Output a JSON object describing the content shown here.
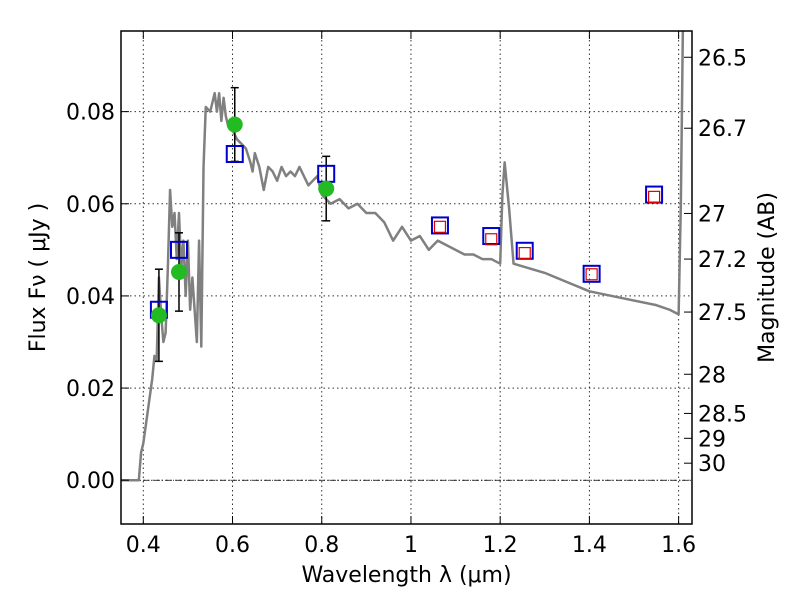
{
  "chart_data": {
    "type": "scatter",
    "title": "",
    "xlabel": "Wavelength  λ (μm)",
    "ylabel": "Flux  Fν  ( μJy )",
    "y2label": "Magnitude (AB)",
    "xlim": [
      0.35,
      1.63
    ],
    "ylim": [
      -0.0095,
      0.0975
    ],
    "grid": true,
    "x_ticks": [
      0.4,
      0.6,
      0.8,
      1.0,
      1.2,
      1.4,
      1.6
    ],
    "x_tick_labels": [
      "0.4",
      "0.6",
      "0.8",
      "1",
      "1.2",
      "1.4",
      "1.6"
    ],
    "y_ticks": [
      0.0,
      0.02,
      0.04,
      0.06,
      0.08
    ],
    "y_tick_labels": [
      "0.00",
      "0.02",
      "0.04",
      "0.06",
      "0.08"
    ],
    "y2_ticks": [
      {
        "flux": 0.0918,
        "label": "26.5"
      },
      {
        "flux": 0.0764,
        "label": "26.7"
      },
      {
        "flux": 0.0579,
        "label": "27"
      },
      {
        "flux": 0.048,
        "label": "27.2"
      },
      {
        "flux": 0.0365,
        "label": "27.5"
      },
      {
        "flux": 0.023,
        "label": "28"
      },
      {
        "flux": 0.0145,
        "label": "28.5"
      },
      {
        "flux": 0.0091,
        "label": "29"
      },
      {
        "flux": 0.0037,
        "label": "30"
      }
    ],
    "zero_line": 0.0,
    "series": [
      {
        "kind": "line",
        "color": "#808080",
        "x": [
          0.35,
          0.39,
          0.395,
          0.4,
          0.41,
          0.42,
          0.425,
          0.43,
          0.435,
          0.44,
          0.445,
          0.45,
          0.455,
          0.46,
          0.465,
          0.47,
          0.475,
          0.48,
          0.485,
          0.49,
          0.495,
          0.5,
          0.505,
          0.51,
          0.52,
          0.525,
          0.53,
          0.535,
          0.54,
          0.55,
          0.555,
          0.56,
          0.565,
          0.57,
          0.575,
          0.58,
          0.585,
          0.59,
          0.6,
          0.61,
          0.62,
          0.63,
          0.64,
          0.645,
          0.65,
          0.66,
          0.67,
          0.68,
          0.69,
          0.7,
          0.71,
          0.72,
          0.73,
          0.74,
          0.75,
          0.76,
          0.77,
          0.78,
          0.79,
          0.8,
          0.82,
          0.84,
          0.86,
          0.88,
          0.9,
          0.92,
          0.94,
          0.96,
          0.98,
          1.0,
          1.02,
          1.04,
          1.06,
          1.08,
          1.1,
          1.12,
          1.14,
          1.16,
          1.18,
          1.2,
          1.205,
          1.21,
          1.22,
          1.23,
          1.3,
          1.35,
          1.4,
          1.45,
          1.5,
          1.55,
          1.58,
          1.6,
          1.605,
          1.61
        ],
        "y": [
          0.0,
          0.0,
          0.006,
          0.008,
          0.015,
          0.022,
          0.027,
          0.026,
          0.044,
          0.036,
          0.03,
          0.032,
          0.046,
          0.063,
          0.055,
          0.058,
          0.048,
          0.058,
          0.046,
          0.052,
          0.04,
          0.052,
          0.037,
          0.044,
          0.03,
          0.052,
          0.029,
          0.068,
          0.081,
          0.08,
          0.082,
          0.084,
          0.08,
          0.084,
          0.078,
          0.083,
          0.079,
          0.077,
          0.076,
          0.074,
          0.073,
          0.072,
          0.069,
          0.067,
          0.071,
          0.068,
          0.063,
          0.068,
          0.067,
          0.065,
          0.068,
          0.066,
          0.067,
          0.066,
          0.068,
          0.066,
          0.064,
          0.065,
          0.066,
          0.062,
          0.06,
          0.061,
          0.059,
          0.06,
          0.058,
          0.058,
          0.056,
          0.052,
          0.055,
          0.052,
          0.053,
          0.05,
          0.052,
          0.051,
          0.05,
          0.049,
          0.049,
          0.048,
          0.048,
          0.047,
          0.062,
          0.069,
          0.059,
          0.047,
          0.045,
          0.043,
          0.041,
          0.04,
          0.039,
          0.038,
          0.037,
          0.036,
          0.06,
          0.102
        ]
      },
      {
        "kind": "points_errorbar",
        "color": "#22bb22",
        "x": [
          0.435,
          0.48,
          0.605,
          0.81
        ],
        "y": [
          0.0358,
          0.0452,
          0.0772,
          0.0633
        ],
        "yerr": [
          0.01,
          0.0085,
          0.008,
          0.007
        ]
      },
      {
        "kind": "open_squares",
        "color": "#0000cc",
        "x": [
          0.435,
          0.48,
          0.605,
          0.81,
          1.065,
          1.18,
          1.255,
          1.405,
          1.545
        ],
        "y": [
          0.037,
          0.05,
          0.0708,
          0.0665,
          0.0553,
          0.053,
          0.0498,
          0.0448,
          0.062
        ]
      },
      {
        "kind": "open_squares_small",
        "color": "#dd0000",
        "x": [
          1.065,
          1.18,
          1.255,
          1.405,
          1.545
        ],
        "y": [
          0.055,
          0.0523,
          0.0493,
          0.0447,
          0.0615
        ]
      }
    ]
  }
}
